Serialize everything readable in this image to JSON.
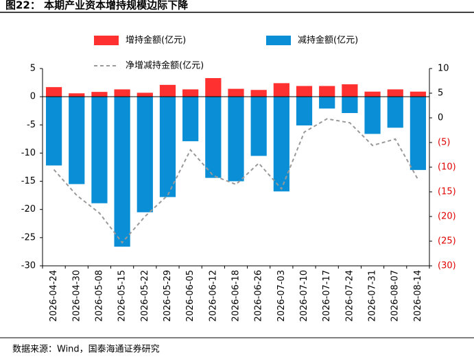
{
  "chart_data": {
    "type": "bar_line",
    "title": "图22： 本期产业资本增持规模边际下降",
    "source": "数据来源：Wind，国泰海通证券研究",
    "categories": [
      "2026-04-24",
      "2026-04-30",
      "2026-05-08",
      "2026-05-15",
      "2026-05-22",
      "2026-05-29",
      "2026-06-05",
      "2026-06-12",
      "2026-06-18",
      "2026-06-26",
      "2026-07-03",
      "2026-07-10",
      "2026-07-17",
      "2026-07-24",
      "2026-07-31",
      "2026-08-07",
      "2026-08-14"
    ],
    "series": [
      {
        "name": "增持金额(亿元)",
        "color": "#ff3030",
        "kind": "bar",
        "values": [
          1.7,
          0.6,
          0.85,
          1.3,
          0.7,
          2.1,
          1.3,
          3.3,
          1.4,
          1.2,
          2.4,
          1.9,
          1.9,
          2.2,
          0.9,
          1.3,
          0.9
        ]
      },
      {
        "name": "减持金额(亿元)",
        "color": "#0a8fd6",
        "kind": "bar",
        "values": [
          -12.2,
          -15.5,
          -18.9,
          -26.6,
          -20.5,
          -17.8,
          -7.9,
          -14.4,
          -15.0,
          -10.5,
          -16.8,
          -5.1,
          -2.1,
          -2.9,
          -6.6,
          -5.5,
          -13.0
        ]
      },
      {
        "name": "净增减持金额(亿元)",
        "color": "#999999",
        "kind": "line",
        "axis": "y2",
        "values": [
          -10.5,
          -15.7,
          -19.3,
          -25.3,
          -20.0,
          -15.7,
          -6.5,
          -11.7,
          -13.5,
          -9.2,
          -14.4,
          -2.9,
          -0.2,
          -1.0,
          -5.6,
          -4.3,
          -12.5
        ]
      }
    ],
    "ylim": [
      -30,
      5
    ],
    "yticks": [
      5,
      0,
      -5,
      -10,
      -15,
      -20,
      -25,
      -30
    ],
    "y2lim": [
      -30,
      10
    ],
    "y2ticks": [
      10,
      5,
      0,
      {
        "value": -5,
        "label": "(5)"
      },
      {
        "value": -10,
        "label": "(10)"
      },
      {
        "value": -15,
        "label": "(15)"
      },
      {
        "value": -20,
        "label": "(20)"
      },
      {
        "value": -25,
        "label": "(25)"
      },
      {
        "value": -30,
        "label": "(30)"
      }
    ],
    "y2_negative_label_color": "#e00000",
    "grid": false
  }
}
